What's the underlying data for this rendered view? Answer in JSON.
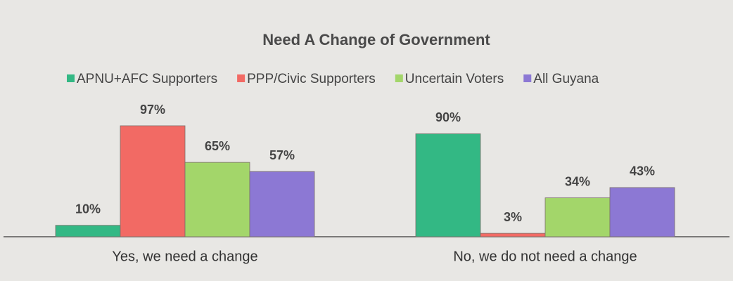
{
  "chart_data": {
    "type": "bar",
    "title": "Need A Change of Government",
    "categories": [
      "Yes, we need a change",
      "No, we do not need a change"
    ],
    "series": [
      {
        "name": "APNU+AFC Supporters",
        "color": "#33b884",
        "values": [
          10,
          90
        ],
        "value_labels": [
          "10%",
          "90%"
        ]
      },
      {
        "name": "PPP/Civic Supporters",
        "color": "#f26a64",
        "values": [
          97,
          3
        ],
        "value_labels": [
          "97%",
          "3%"
        ]
      },
      {
        "name": "Uncertain Voters",
        "color": "#a3d66a",
        "values": [
          65,
          34
        ],
        "value_labels": [
          "65%",
          "34%"
        ]
      },
      {
        "name": "All Guyana",
        "color": "#8c78d4",
        "values": [
          57,
          43
        ],
        "value_labels": [
          "57%",
          "43%"
        ]
      }
    ],
    "legend": "top"
  }
}
